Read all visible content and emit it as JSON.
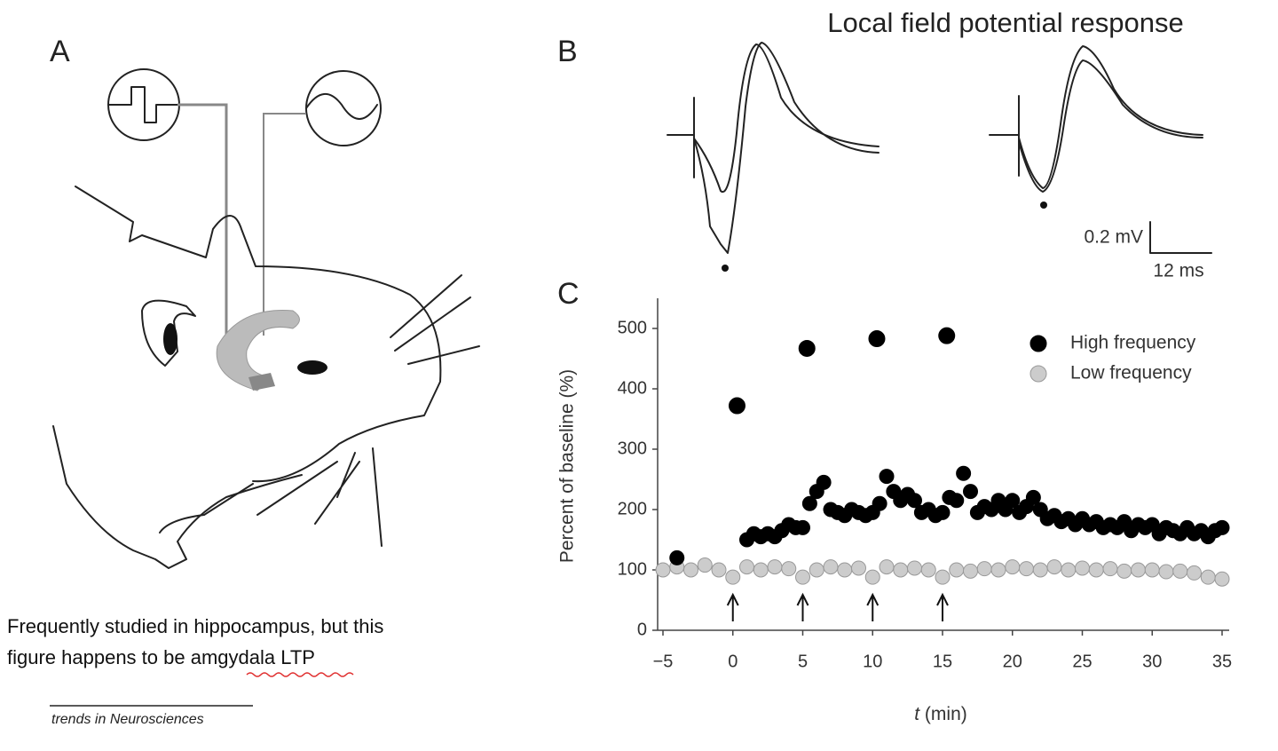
{
  "panels": {
    "a": "A",
    "b": "B",
    "c": "C"
  },
  "panel_b": {
    "title": "Local field potential response",
    "scale_y": "0.2 mV",
    "scale_x": "12 ms"
  },
  "caption": {
    "line1": "Frequently studied in hippocampus, but this",
    "line2_start": "figure happens to be ",
    "line2_underlined": "amgydala",
    "line2_end": " LTP"
  },
  "source": "trends in Neurosciences",
  "chart_data": {
    "type": "scatter",
    "ylabel": "Percent of baseline (%)",
    "xlabel": {
      "symbol": "t",
      "unit": "(min)"
    },
    "xlim": [
      -5,
      35
    ],
    "ylim": [
      0,
      550
    ],
    "xticks": [
      {
        "value": -5,
        "label": "−5"
      },
      0,
      5,
      10,
      15,
      20,
      25,
      30,
      35
    ],
    "yticks": [
      0,
      100,
      200,
      300,
      400,
      500
    ],
    "stimulus_times": [
      0,
      5,
      10,
      15
    ],
    "legend": "top-right",
    "series": [
      {
        "name": "High frequency",
        "color": "#000000",
        "x": [
          -4,
          0.3,
          5.3,
          10.3,
          15.3,
          1,
          1.5,
          2,
          2.5,
          3,
          3.5,
          4,
          4.5,
          5,
          5.5,
          6,
          6.5,
          7,
          7.5,
          8,
          8.5,
          9,
          9.5,
          10,
          10.5,
          11,
          11.5,
          12,
          12.5,
          13,
          13.5,
          14,
          14.5,
          15,
          15.5,
          16,
          16.5,
          17,
          17.5,
          18,
          18.5,
          19,
          19.5,
          20,
          20.5,
          21,
          21.5,
          22,
          22.5,
          23,
          23.5,
          24,
          24.5,
          25,
          25.5,
          26,
          26.5,
          27,
          27.5,
          28,
          28.5,
          29,
          29.5,
          30,
          30.5,
          31,
          31.5,
          32,
          32.5,
          33,
          33.5,
          34,
          34.5,
          35
        ],
        "values": [
          120,
          372,
          467,
          483,
          488,
          150,
          160,
          155,
          160,
          155,
          165,
          175,
          170,
          170,
          210,
          230,
          245,
          200,
          195,
          190,
          200,
          195,
          190,
          195,
          210,
          255,
          230,
          215,
          225,
          215,
          195,
          200,
          190,
          195,
          220,
          215,
          260,
          230,
          195,
          205,
          200,
          215,
          200,
          215,
          195,
          205,
          220,
          200,
          185,
          190,
          180,
          185,
          175,
          185,
          175,
          180,
          170,
          175,
          170,
          180,
          165,
          175,
          170,
          175,
          160,
          170,
          165,
          160,
          170,
          160,
          165,
          155,
          165,
          170
        ]
      },
      {
        "name": "Low frequency",
        "color": "#cccccc",
        "x": [
          -5,
          -4,
          -3,
          -2,
          -1,
          0,
          1,
          2,
          3,
          4,
          5,
          6,
          7,
          8,
          9,
          10,
          11,
          12,
          13,
          14,
          15,
          16,
          17,
          18,
          19,
          20,
          21,
          22,
          23,
          24,
          25,
          26,
          27,
          28,
          29,
          30,
          31,
          32,
          33,
          34,
          35
        ],
        "values": [
          100,
          105,
          100,
          108,
          100,
          88,
          105,
          100,
          105,
          102,
          88,
          100,
          105,
          100,
          103,
          88,
          105,
          100,
          103,
          100,
          88,
          100,
          98,
          102,
          100,
          105,
          102,
          100,
          105,
          100,
          103,
          100,
          102,
          98,
          100,
          100,
          97,
          98,
          95,
          88,
          85
        ]
      }
    ]
  }
}
